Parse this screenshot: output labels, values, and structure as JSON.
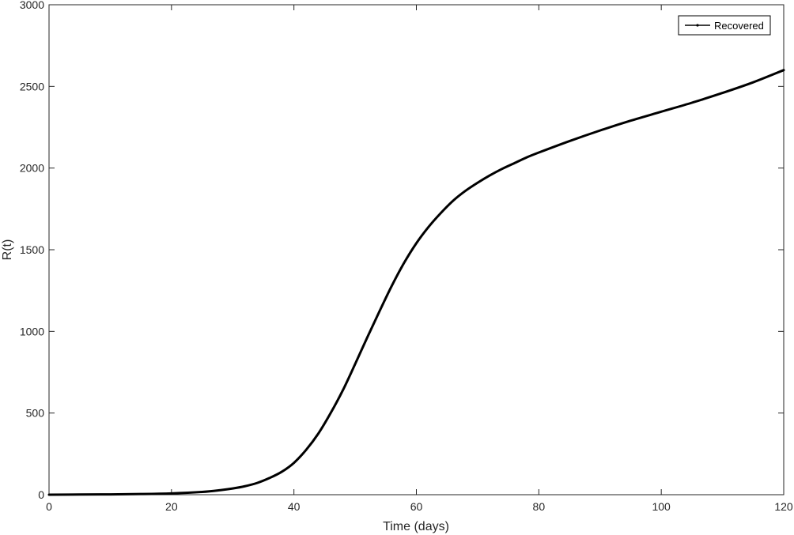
{
  "chart_data": {
    "type": "line",
    "title": "",
    "xlabel": "Time (days)",
    "ylabel": "R(t)",
    "xlim": [
      0,
      120
    ],
    "ylim": [
      0,
      3000
    ],
    "xticks": [
      0,
      20,
      40,
      60,
      80,
      100,
      120
    ],
    "yticks": [
      0,
      500,
      1000,
      1500,
      2000,
      2500,
      3000
    ],
    "grid": false,
    "legend_position": "top-right",
    "series": [
      {
        "name": "Recovered",
        "color": "#000000",
        "x": [
          0,
          5,
          10,
          15,
          20,
          25,
          28,
          30,
          32,
          34,
          36,
          38,
          40,
          42,
          44,
          46,
          48,
          50,
          52,
          54,
          56,
          58,
          60,
          62,
          64,
          66,
          68,
          70,
          72,
          74,
          76,
          78,
          80,
          85,
          90,
          95,
          100,
          105,
          110,
          115,
          120
        ],
        "y": [
          0,
          1,
          2,
          4,
          8,
          17,
          28,
          38,
          52,
          72,
          102,
          140,
          195,
          275,
          375,
          500,
          640,
          800,
          965,
          1125,
          1280,
          1420,
          1540,
          1640,
          1725,
          1800,
          1860,
          1910,
          1955,
          1995,
          2030,
          2065,
          2095,
          2165,
          2230,
          2290,
          2345,
          2400,
          2460,
          2525,
          2600
        ]
      }
    ]
  }
}
